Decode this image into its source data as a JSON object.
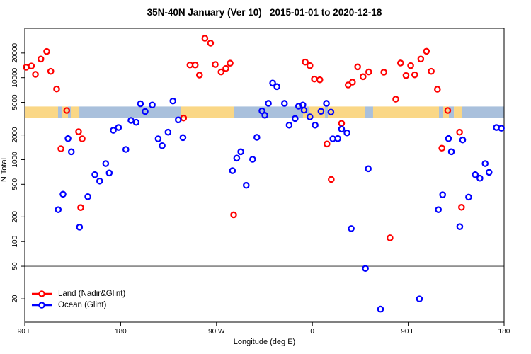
{
  "chart_data": {
    "type": "scatter",
    "title": "35N-40N January (Ver 10)   2015-01-01 to 2020-12-18",
    "xlabel": "Longitude (deg E)",
    "ylabel": "N Total",
    "x_axis": {
      "range": [
        90,
        540
      ],
      "note": "longitude axis wraps: 90E eastward to 180, 90W, 0, 90E, 180",
      "ticks": [
        {
          "value": 90,
          "label": "90 E"
        },
        {
          "value": 180,
          "label": "180"
        },
        {
          "value": 270,
          "label": "90 W"
        },
        {
          "value": 360,
          "label": "0"
        },
        {
          "value": 450,
          "label": "90 E"
        },
        {
          "value": 540,
          "label": "180"
        }
      ]
    },
    "y_axis": {
      "scale": "log",
      "range": [
        10.4,
        40000
      ],
      "ticks": [
        {
          "value": 20,
          "label": "20"
        },
        {
          "value": 50,
          "label": "50"
        },
        {
          "value": 100,
          "label": "100"
        },
        {
          "value": 200,
          "label": "200"
        },
        {
          "value": 500,
          "label": "500"
        },
        {
          "value": 1000,
          "label": "1000"
        },
        {
          "value": 2000,
          "label": "2000"
        },
        {
          "value": 5000,
          "label": "5000"
        },
        {
          "value": 10000,
          "label": "10000"
        },
        {
          "value": 20000,
          "label": "20000"
        }
      ]
    },
    "reference_line": {
      "y": 50,
      "color": "#4d4d4d"
    },
    "surface_band": {
      "y_top_value": 4450,
      "y_bottom_value": 3250,
      "land_color": "#FAD786",
      "ocean_color": "#A9C0DC",
      "segments": [
        {
          "from": 0.0,
          "to": 0.0694,
          "type": "land"
        },
        {
          "from": 0.0694,
          "to": 0.0783,
          "type": "ocean"
        },
        {
          "from": 0.0783,
          "to": 0.0901,
          "type": "land"
        },
        {
          "from": 0.0901,
          "to": 0.096,
          "type": "ocean"
        },
        {
          "from": 0.096,
          "to": 0.1138,
          "type": "land"
        },
        {
          "from": 0.1138,
          "to": 0.325,
          "type": "ocean"
        },
        {
          "from": 0.325,
          "to": 0.4358,
          "type": "land"
        },
        {
          "from": 0.4358,
          "to": 0.5805,
          "type": "ocean"
        },
        {
          "from": 0.5805,
          "to": 0.5879,
          "type": "land"
        },
        {
          "from": 0.5879,
          "to": 0.5938,
          "type": "ocean"
        },
        {
          "from": 0.5938,
          "to": 0.6263,
          "type": "land"
        },
        {
          "from": 0.6263,
          "to": 0.6322,
          "type": "ocean"
        },
        {
          "from": 0.6322,
          "to": 0.7104,
          "type": "land"
        },
        {
          "from": 0.7104,
          "to": 0.7267,
          "type": "ocean"
        },
        {
          "from": 0.7267,
          "to": 0.8641,
          "type": "land"
        },
        {
          "from": 0.8641,
          "to": 0.873,
          "type": "ocean"
        },
        {
          "from": 0.873,
          "to": 0.8848,
          "type": "land"
        },
        {
          "from": 0.8848,
          "to": 0.8952,
          "type": "ocean"
        },
        {
          "from": 0.8952,
          "to": 0.9114,
          "type": "land"
        },
        {
          "from": 0.9114,
          "to": 1.0,
          "type": "ocean"
        }
      ]
    },
    "series": [
      {
        "name": "Land (Nadir&Glint)",
        "color": "#FF0000",
        "marker": "open-circle",
        "points": [
          [
            110.6,
            20900
          ],
          [
            105.1,
            16900
          ],
          [
            96.2,
            13900
          ],
          [
            91.3,
            13400
          ],
          [
            100.0,
            11000
          ],
          [
            114.4,
            11970
          ],
          [
            119.9,
            7280
          ],
          [
            129.4,
            3980
          ],
          [
            140.5,
            2190
          ],
          [
            123.9,
            1360
          ],
          [
            143.9,
            1795
          ],
          [
            142.5,
            260
          ],
          [
            259.1,
            30300
          ],
          [
            264.4,
            26400
          ],
          [
            245.1,
            14300
          ],
          [
            250.0,
            14300
          ],
          [
            254.0,
            10770
          ],
          [
            268.8,
            14500
          ],
          [
            274.3,
            11750
          ],
          [
            278.8,
            12970
          ],
          [
            282.8,
            15030
          ],
          [
            239.1,
            3220
          ],
          [
            286.1,
            212
          ],
          [
            353.3,
            15500
          ],
          [
            357.7,
            14030
          ],
          [
            361.9,
            9620
          ],
          [
            367.0,
            9420
          ],
          [
            402.5,
            13580
          ],
          [
            393.6,
            8150
          ],
          [
            397.6,
            8830
          ],
          [
            407.6,
            10280
          ],
          [
            412.9,
            11750
          ],
          [
            427.1,
            11670
          ],
          [
            387.4,
            2770
          ],
          [
            373.7,
            1553
          ],
          [
            377.7,
            574
          ],
          [
            467.1,
            21000
          ],
          [
            461.8,
            16900
          ],
          [
            442.8,
            15100
          ],
          [
            452.3,
            14030
          ],
          [
            447.9,
            10620
          ],
          [
            456.1,
            10840
          ],
          [
            471.6,
            11970
          ],
          [
            477.4,
            7230
          ],
          [
            438.3,
            5470
          ],
          [
            487.1,
            3980
          ],
          [
            498.2,
            2160
          ],
          [
            481.6,
            1380
          ],
          [
            500.0,
            262
          ],
          [
            432.9,
            111
          ]
        ]
      },
      {
        "name": "Ocean (Glint)",
        "color": "#0000FF",
        "marker": "open-circle",
        "points": [
          [
            198.6,
            4800
          ],
          [
            203.0,
            3865
          ],
          [
            189.7,
            3013
          ],
          [
            194.6,
            2858
          ],
          [
            178.0,
            2466
          ],
          [
            173.1,
            2280
          ],
          [
            130.6,
            1806
          ],
          [
            133.7,
            1247
          ],
          [
            184.9,
            1333
          ],
          [
            166.0,
            895
          ],
          [
            155.8,
            655
          ],
          [
            160.3,
            547
          ],
          [
            169.3,
            687
          ],
          [
            125.9,
            378
          ],
          [
            149.2,
            353
          ],
          [
            121.4,
            245
          ],
          [
            141.4,
            150
          ],
          [
            209.7,
            4645
          ],
          [
            229.1,
            5190
          ],
          [
            234.1,
            3055
          ],
          [
            224.5,
            2162
          ],
          [
            215.2,
            1795
          ],
          [
            219.0,
            1480
          ],
          [
            238.5,
            1858
          ],
          [
            307.9,
            1870
          ],
          [
            292.8,
            1248
          ],
          [
            289.0,
            1043
          ],
          [
            303.9,
            1009
          ],
          [
            285.0,
            733
          ],
          [
            297.9,
            486
          ],
          [
            312.7,
            3928
          ],
          [
            315.4,
            3478
          ],
          [
            318.7,
            4860
          ],
          [
            322.7,
            8590
          ],
          [
            326.7,
            7780
          ],
          [
            333.8,
            4860
          ],
          [
            347.1,
            4490
          ],
          [
            351.1,
            4645
          ],
          [
            352.2,
            4010
          ],
          [
            357.7,
            3327
          ],
          [
            368.1,
            3882
          ],
          [
            373.2,
            4860
          ],
          [
            377.4,
            3800
          ],
          [
            343.8,
            3177
          ],
          [
            338.2,
            2634
          ],
          [
            362.6,
            2634
          ],
          [
            387.4,
            2360
          ],
          [
            392.5,
            2117
          ],
          [
            379.2,
            1795
          ],
          [
            383.9,
            1806
          ],
          [
            412.5,
            774
          ],
          [
            396.5,
            144
          ],
          [
            409.8,
            47
          ],
          [
            424.0,
            15
          ],
          [
            460.5,
            20
          ],
          [
            532.8,
            2466
          ],
          [
            537.4,
            2417
          ],
          [
            487.8,
            1806
          ],
          [
            501.1,
            1738
          ],
          [
            490.5,
            1248
          ],
          [
            522.2,
            895
          ],
          [
            512.9,
            655
          ],
          [
            517.3,
            593
          ],
          [
            525.9,
            700
          ],
          [
            482.3,
            372
          ],
          [
            506.7,
            349
          ],
          [
            478.3,
            245
          ],
          [
            498.4,
            152
          ]
        ]
      }
    ],
    "legend": {
      "position": "bottom-left-inside"
    }
  }
}
